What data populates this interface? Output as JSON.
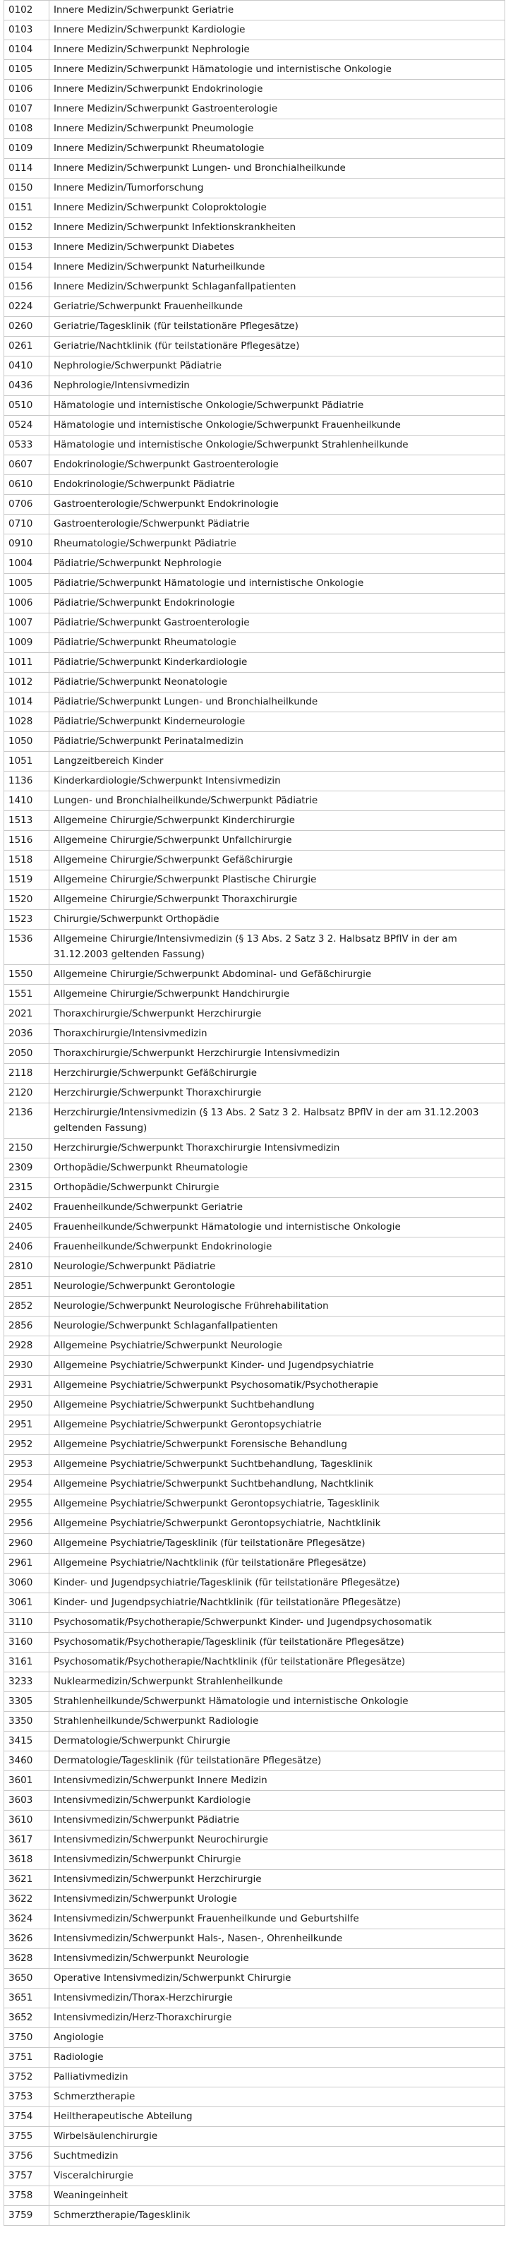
{
  "rows": [
    [
      "0102",
      "Innere Medizin/Schwerpunkt Geriatrie"
    ],
    [
      "0103",
      "Innere Medizin/Schwerpunkt Kardiologie"
    ],
    [
      "0104",
      "Innere Medizin/Schwerpunkt Nephrologie"
    ],
    [
      "0105",
      "Innere Medizin/Schwerpunkt Hämatologie und internistische Onkologie"
    ],
    [
      "0106",
      "Innere Medizin/Schwerpunkt Endokrinologie"
    ],
    [
      "0107",
      "Innere Medizin/Schwerpunkt Gastroenterologie"
    ],
    [
      "0108",
      "Innere Medizin/Schwerpunkt Pneumologie"
    ],
    [
      "0109",
      "Innere Medizin/Schwerpunkt Rheumatologie"
    ],
    [
      "0114",
      "Innere Medizin/Schwerpunkt Lungen- und Bronchialheilkunde"
    ],
    [
      "0150",
      "Innere Medizin/Tumorforschung"
    ],
    [
      "0151",
      "Innere Medizin/Schwerpunkt Coloproktologie"
    ],
    [
      "0152",
      "Innere Medizin/Schwerpunkt Infektionskrankheiten"
    ],
    [
      "0153",
      "Innere Medizin/Schwerpunkt Diabetes"
    ],
    [
      "0154",
      "Innere Medizin/Schwerpunkt Naturheilkunde"
    ],
    [
      "0156",
      "Innere Medizin/Schwerpunkt Schlaganfallpatienten"
    ],
    [
      "0224",
      "Geriatrie/Schwerpunkt Frauenheilkunde"
    ],
    [
      "0260",
      "Geriatrie/Tagesklinik (für teilstationäre Pflegesätze)"
    ],
    [
      "0261",
      "Geriatrie/Nachtklinik (für teilstationäre Pflegesätze)"
    ],
    [
      "0410",
      "Nephrologie/Schwerpunkt Pädiatrie"
    ],
    [
      "0436",
      "Nephrologie/Intensivmedizin"
    ],
    [
      "0510",
      "Hämatologie und internistische Onkologie/Schwerpunkt Pädiatrie"
    ],
    [
      "0524",
      "Hämatologie und internistische Onkologie/Schwerpunkt Frauenheilkunde"
    ],
    [
      "0533",
      "Hämatologie und internistische Onkologie/Schwerpunkt Strahlenheilkunde"
    ],
    [
      "0607",
      "Endokrinologie/Schwerpunkt Gastroenterologie"
    ],
    [
      "0610",
      "Endokrinologie/Schwerpunkt Pädiatrie"
    ],
    [
      "0706",
      "Gastroenterologie/Schwerpunkt Endokrinologie"
    ],
    [
      "0710",
      "Gastroenterologie/Schwerpunkt Pädiatrie"
    ],
    [
      "0910",
      "Rheumatologie/Schwerpunkt Pädiatrie"
    ],
    [
      "1004",
      "Pädiatrie/Schwerpunkt Nephrologie"
    ],
    [
      "1005",
      "Pädiatrie/Schwerpunkt Hämatologie und internistische Onkologie"
    ],
    [
      "1006",
      "Pädiatrie/Schwerpunkt Endokrinologie"
    ],
    [
      "1007",
      "Pädiatrie/Schwerpunkt Gastroenterologie"
    ],
    [
      "1009",
      "Pädiatrie/Schwerpunkt Rheumatologie"
    ],
    [
      "1011",
      "Pädiatrie/Schwerpunkt Kinderkardiologie"
    ],
    [
      "1012",
      "Pädiatrie/Schwerpunkt Neonatologie"
    ],
    [
      "1014",
      "Pädiatrie/Schwerpunkt Lungen- und Bronchialheilkunde"
    ],
    [
      "1028",
      "Pädiatrie/Schwerpunkt Kinderneurologie"
    ],
    [
      "1050",
      "Pädiatrie/Schwerpunkt Perinatalmedizin"
    ],
    [
      "1051",
      "Langzeitbereich Kinder"
    ],
    [
      "1136",
      "Kinderkardiologie/Schwerpunkt Intensivmedizin"
    ],
    [
      "1410",
      "Lungen- und Bronchialheilkunde/Schwerpunkt Pädiatrie"
    ],
    [
      "1513",
      "Allgemeine Chirurgie/Schwerpunkt Kinderchirurgie"
    ],
    [
      "1516",
      "Allgemeine Chirurgie/Schwerpunkt Unfallchirurgie"
    ],
    [
      "1518",
      "Allgemeine Chirurgie/Schwerpunkt Gefäßchirurgie"
    ],
    [
      "1519",
      "Allgemeine Chirurgie/Schwerpunkt Plastische Chirurgie"
    ],
    [
      "1520",
      "Allgemeine Chirurgie/Schwerpunkt Thoraxchirurgie"
    ],
    [
      "1523",
      "Chirurgie/Schwerpunkt Orthopädie"
    ],
    [
      "1536",
      "Allgemeine Chirurgie/Intensivmedizin (§ 13 Abs. 2 Satz 3 2. Halbsatz BPflV in der am 31.12.2003 geltenden Fassung)"
    ],
    [
      "1550",
      "Allgemeine Chirurgie/Schwerpunkt Abdominal- und Gefäßchirurgie"
    ],
    [
      "1551",
      "Allgemeine Chirurgie/Schwerpunkt Handchirurgie"
    ],
    [
      "2021",
      "Thoraxchirurgie/Schwerpunkt Herzchirurgie"
    ],
    [
      "2036",
      "Thoraxchirurgie/Intensivmedizin"
    ],
    [
      "2050",
      "Thoraxchirurgie/Schwerpunkt Herzchirurgie Intensivmedizin"
    ],
    [
      "2118",
      "Herzchirurgie/Schwerpunkt Gefäßchirurgie"
    ],
    [
      "2120",
      "Herzchirurgie/Schwerpunkt Thoraxchirurgie"
    ],
    [
      "2136",
      "Herzchirurgie/Intensivmedizin (§ 13 Abs. 2 Satz 3 2. Halbsatz BPflV in der am 31.12.2003 geltenden Fassung)"
    ],
    [
      "2150",
      "Herzchirurgie/Schwerpunkt Thoraxchirurgie Intensivmedizin"
    ],
    [
      "2309",
      "Orthopädie/Schwerpunkt Rheumatologie"
    ],
    [
      "2315",
      "Orthopädie/Schwerpunkt Chirurgie"
    ],
    [
      "2402",
      "Frauenheilkunde/Schwerpunkt Geriatrie"
    ],
    [
      "2405",
      "Frauenheilkunde/Schwerpunkt Hämatologie und internistische Onkologie"
    ],
    [
      "2406",
      "Frauenheilkunde/Schwerpunkt Endokrinologie"
    ],
    [
      "2810",
      "Neurologie/Schwerpunkt Pädiatrie"
    ],
    [
      "2851",
      "Neurologie/Schwerpunkt Gerontologie"
    ],
    [
      "2852",
      "Neurologie/Schwerpunkt Neurologische Frührehabilitation"
    ],
    [
      "2856",
      "Neurologie/Schwerpunkt Schlaganfallpatienten"
    ],
    [
      "2928",
      "Allgemeine Psychiatrie/Schwerpunkt Neurologie"
    ],
    [
      "2930",
      "Allgemeine Psychiatrie/Schwerpunkt Kinder- und Jugendpsychiatrie"
    ],
    [
      "2931",
      "Allgemeine Psychiatrie/Schwerpunkt Psychosomatik/Psychotherapie"
    ],
    [
      "2950",
      "Allgemeine Psychiatrie/Schwerpunkt Suchtbehandlung"
    ],
    [
      "2951",
      "Allgemeine Psychiatrie/Schwerpunkt Gerontopsychiatrie"
    ],
    [
      "2952",
      "Allgemeine Psychiatrie/Schwerpunkt Forensische Behandlung"
    ],
    [
      "2953",
      "Allgemeine Psychiatrie/Schwerpunkt Suchtbehandlung, Tagesklinik"
    ],
    [
      "2954",
      "Allgemeine Psychiatrie/Schwerpunkt Suchtbehandlung, Nachtklinik"
    ],
    [
      "2955",
      "Allgemeine Psychiatrie/Schwerpunkt Gerontopsychiatrie, Tagesklinik"
    ],
    [
      "2956",
      "Allgemeine Psychiatrie/Schwerpunkt Gerontopsychiatrie, Nachtklinik"
    ],
    [
      "2960",
      "Allgemeine Psychiatrie/Tagesklinik (für teilstationäre Pflegesätze)"
    ],
    [
      "2961",
      "Allgemeine Psychiatrie/Nachtklinik (für teilstationäre Pflegesätze)"
    ],
    [
      "3060",
      "Kinder- und Jugendpsychiatrie/Tagesklinik (für teilstationäre Pflegesätze)"
    ],
    [
      "3061",
      "Kinder- und Jugendpsychiatrie/Nachtklinik (für teilstationäre Pflegesätze)"
    ],
    [
      "3110",
      "Psychosomatik/Psychotherapie/Schwerpunkt Kinder- und Jugendpsychosomatik"
    ],
    [
      "3160",
      "Psychosomatik/Psychotherapie/Tagesklinik (für teilstationäre Pflegesätze)"
    ],
    [
      "3161",
      "Psychosomatik/Psychotherapie/Nachtklinik (für teilstationäre Pflegesätze)"
    ],
    [
      "3233",
      "Nuklearmedizin/Schwerpunkt Strahlenheilkunde"
    ],
    [
      "3305",
      "Strahlenheilkunde/Schwerpunkt Hämatologie und internistische Onkologie"
    ],
    [
      "3350",
      "Strahlenheilkunde/Schwerpunkt Radiologie"
    ],
    [
      "3415",
      "Dermatologie/Schwerpunkt Chirurgie"
    ],
    [
      "3460",
      "Dermatologie/Tagesklinik (für teilstationäre Pflegesätze)"
    ],
    [
      "3601",
      "Intensivmedizin/Schwerpunkt Innere Medizin"
    ],
    [
      "3603",
      "Intensivmedizin/Schwerpunkt Kardiologie"
    ],
    [
      "3610",
      "Intensivmedizin/Schwerpunkt Pädiatrie"
    ],
    [
      "3617",
      "Intensivmedizin/Schwerpunkt Neurochirurgie"
    ],
    [
      "3618",
      "Intensivmedizin/Schwerpunkt Chirurgie"
    ],
    [
      "3621",
      "Intensivmedizin/Schwerpunkt Herzchirurgie"
    ],
    [
      "3622",
      "Intensivmedizin/Schwerpunkt Urologie"
    ],
    [
      "3624",
      "Intensivmedizin/Schwerpunkt Frauenheilkunde und Geburtshilfe"
    ],
    [
      "3626",
      "Intensivmedizin/Schwerpunkt Hals-, Nasen-, Ohrenheilkunde"
    ],
    [
      "3628",
      "Intensivmedizin/Schwerpunkt Neurologie"
    ],
    [
      "3650",
      "Operative Intensivmedizin/Schwerpunkt Chirurgie"
    ],
    [
      "3651",
      "Intensivmedizin/Thorax-Herzchirurgie"
    ],
    [
      "3652",
      "Intensivmedizin/Herz-Thoraxchirurgie"
    ],
    [
      "3750",
      "Angiologie"
    ],
    [
      "3751",
      "Radiologie"
    ],
    [
      "3752",
      "Palliativmedizin"
    ],
    [
      "3753",
      "Schmerztherapie"
    ],
    [
      "3754",
      "Heiltherapeutische Abteilung"
    ],
    [
      "3755",
      "Wirbelsäulenchirurgie"
    ],
    [
      "3756",
      "Suchtmedizin"
    ],
    [
      "3757",
      "Visceralchirurgie"
    ],
    [
      "3758",
      "Weaningeinheit"
    ],
    [
      "3759",
      "Schmerztherapie/Tagesklinik"
    ]
  ]
}
